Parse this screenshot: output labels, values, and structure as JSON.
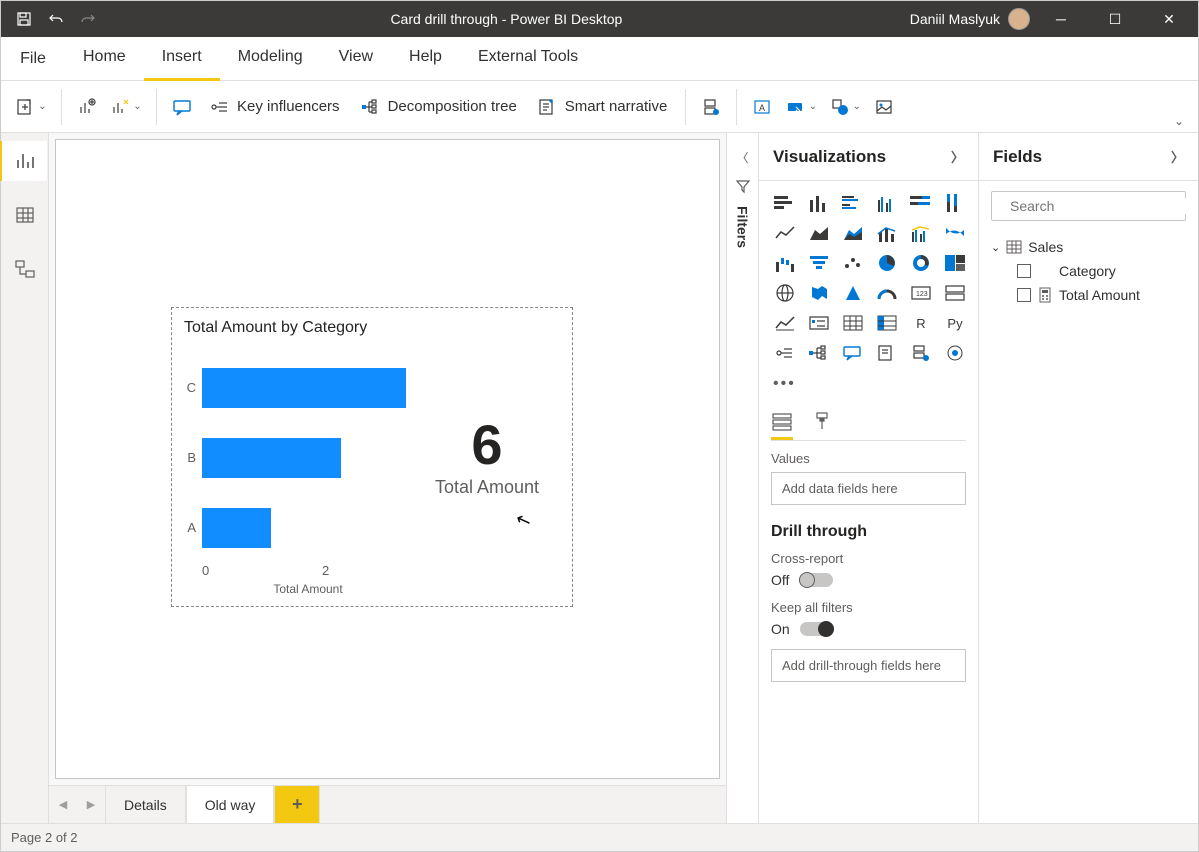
{
  "window": {
    "title": "Card drill through - Power BI Desktop",
    "user_name": "Daniil Maslyuk",
    "accent_color": "#f2c811",
    "bar_color": "#118dff"
  },
  "tabs": {
    "file": "File",
    "items": [
      "Home",
      "Insert",
      "Modeling",
      "View",
      "Help",
      "External Tools"
    ],
    "active_index": 1
  },
  "ribbon": {
    "key_influencers": "Key influencers",
    "decomposition_tree": "Decomposition tree",
    "smart_narrative": "Smart narrative"
  },
  "pages": {
    "items": [
      "Details",
      "Old way"
    ],
    "active_index": 1,
    "status": "Page 2 of 2"
  },
  "filters_label": "Filters",
  "viz_pane": {
    "title": "Visualizations",
    "values_label": "Values",
    "values_placeholder": "Add data fields here",
    "drill_title": "Drill through",
    "cross_report_label": "Cross-report",
    "cross_report_state": "Off",
    "keep_filters_label": "Keep all filters",
    "keep_filters_state": "On",
    "drill_placeholder": "Add drill-through fields here"
  },
  "fields_pane": {
    "title": "Fields",
    "search_placeholder": "Search",
    "table_name": "Sales",
    "fields": [
      "Category",
      "Total Amount"
    ]
  },
  "visual": {
    "chart_title": "Total Amount by Category",
    "type": "bar",
    "categories": [
      "C",
      "B",
      "A"
    ],
    "values_pct": [
      100,
      68,
      34
    ],
    "axis_ticks": [
      "0",
      "2"
    ],
    "axis_label": "Total Amount",
    "card_value": "6",
    "card_label": "Total Amount"
  }
}
